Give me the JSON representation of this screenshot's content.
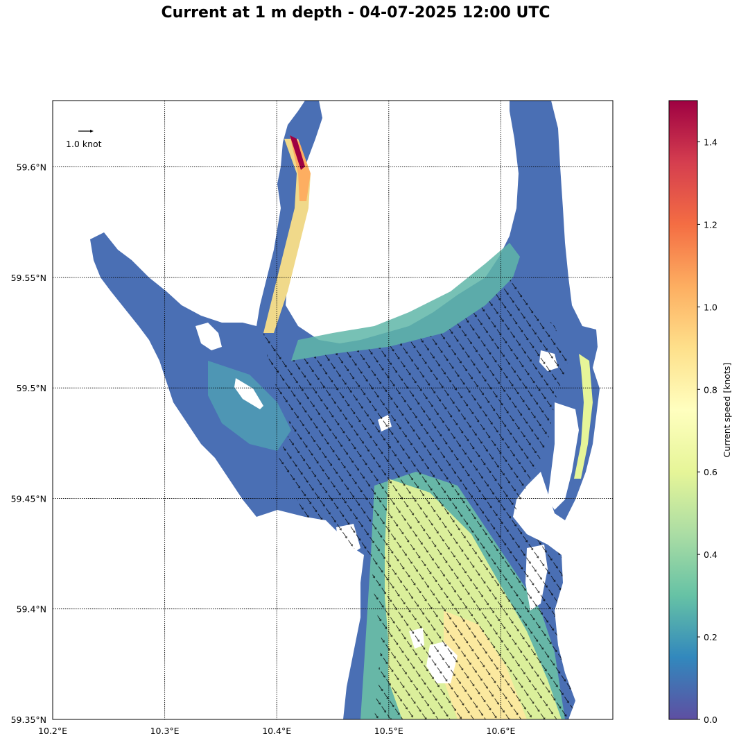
{
  "title": "Current at 1 m depth - 04-07-2025 12:00 UTC",
  "map": {
    "lon_range": [
      10.2,
      10.7
    ],
    "lat_range": [
      59.35,
      59.63
    ],
    "lon_ticks": [
      10.2,
      10.3,
      10.4,
      10.5,
      10.6
    ],
    "lat_ticks": [
      59.35,
      59.4,
      59.45,
      59.5,
      59.55,
      59.6
    ],
    "lon_tick_labels": [
      "10.2°E",
      "10.3°E",
      "10.4°E",
      "10.5°E",
      "10.6°E"
    ],
    "lat_tick_labels": [
      "59.35°N",
      "59.4°N",
      "59.45°N",
      "59.5°N",
      "59.55°N",
      "59.6°N"
    ],
    "gridlines": "dotted",
    "quiver_key_label": "1.0 knot",
    "quiver_key_value_knots": 1.0,
    "dominant_flow": "southeast along main channel"
  },
  "colorbar": {
    "label": "Current speed [knots]",
    "range": [
      0.0,
      1.5
    ],
    "ticks": [
      0.0,
      0.2,
      0.4,
      0.6,
      0.8,
      1.0,
      1.2,
      1.4
    ],
    "tick_labels": [
      "0.0",
      "0.2",
      "0.4",
      "0.6",
      "0.8",
      "1.0",
      "1.2",
      "1.4"
    ],
    "colormap": "Spectral_r",
    "colors": [
      "#5e4fa2",
      "#3288bd",
      "#66c2a5",
      "#abdda4",
      "#e6f598",
      "#ffffbf",
      "#fee08b",
      "#fdae61",
      "#f46d43",
      "#d53e4f",
      "#9e0142"
    ]
  }
}
